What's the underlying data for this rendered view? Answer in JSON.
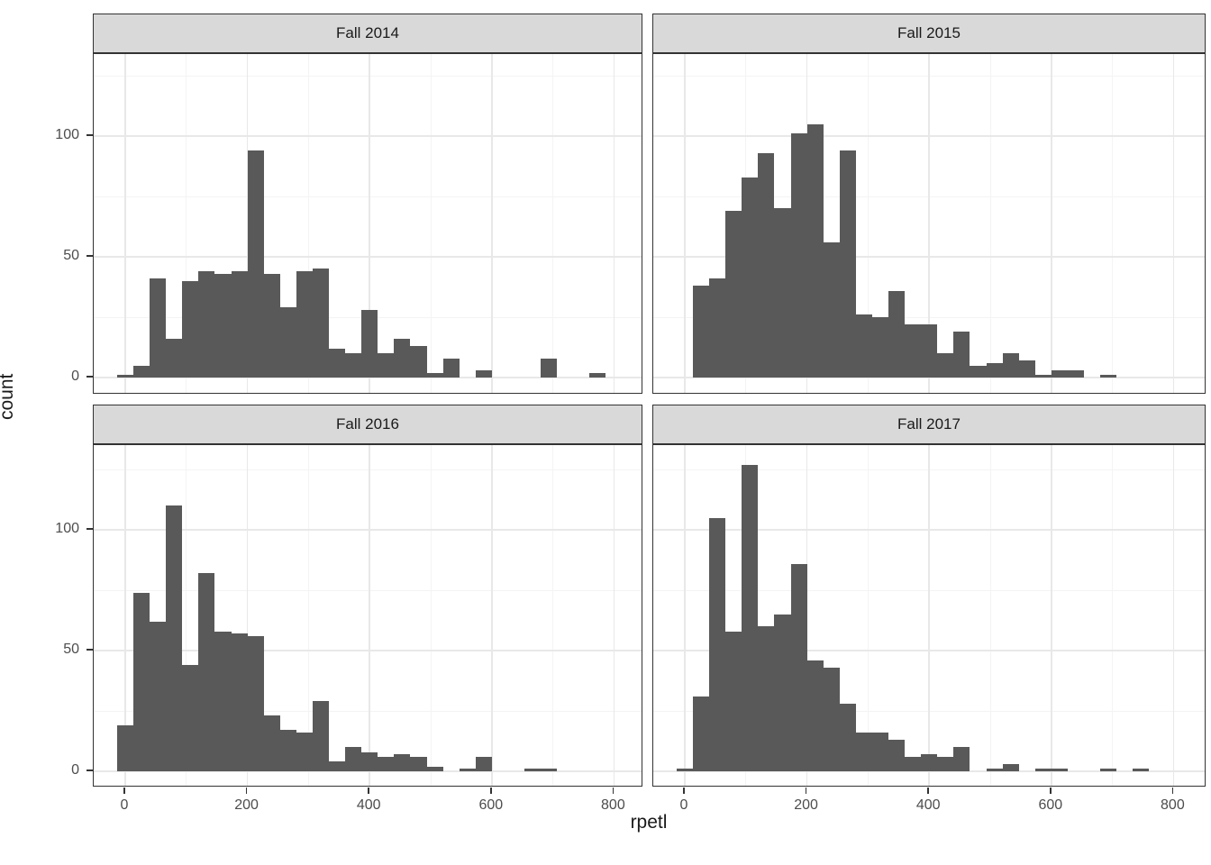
{
  "titles": {
    "x": "rpetl",
    "y": "count"
  },
  "axes": {
    "x_tick_labels": [
      "0",
      "200",
      "400",
      "600",
      "800"
    ],
    "y_tick_labels": [
      "0",
      "50",
      "100"
    ]
  },
  "style": {
    "bar_color": "#595959",
    "strip_fill": "#d9d9d9",
    "border_color": "#333333",
    "grid_major_color": "#e8e8e8",
    "grid_minor_color": "#f4f4f4",
    "axis_text_color": "#4d4d4d"
  },
  "chart_data": {
    "type": "bar",
    "subtype": "faceted-histogram",
    "title": "",
    "xlabel": "rpetl",
    "ylabel": "count",
    "x_ticks": [
      0,
      200,
      400,
      600,
      800
    ],
    "y_ticks": [
      0,
      50,
      100
    ],
    "x_minor_ticks": [
      100,
      300,
      500,
      700
    ],
    "y_minor_ticks": [
      25,
      75,
      125
    ],
    "xlim": [
      -51,
      848
    ],
    "ylim": [
      0,
      134
    ],
    "grid": true,
    "legend_position": "none",
    "bin_width": 26.67,
    "bin_centers": "multiples of 26.67 starting at 0",
    "facets": [
      {
        "label": "Fall 2014",
        "counts": [
          1,
          5,
          41,
          16,
          40,
          44,
          43,
          44,
          94,
          43,
          29,
          44,
          45,
          12,
          10,
          28,
          10,
          16,
          13,
          2,
          8,
          0,
          3,
          0,
          0,
          0,
          8,
          0,
          0,
          2
        ]
      },
      {
        "label": "Fall 2015",
        "counts": [
          0,
          38,
          41,
          69,
          83,
          93,
          70,
          101,
          105,
          56,
          94,
          26,
          25,
          36,
          22,
          22,
          10,
          19,
          5,
          6,
          10,
          7,
          1,
          3,
          3,
          0,
          1
        ]
      },
      {
        "label": "Fall 2016",
        "counts": [
          19,
          74,
          62,
          110,
          44,
          82,
          58,
          57,
          56,
          23,
          17,
          16,
          29,
          4,
          10,
          8,
          6,
          7,
          6,
          2,
          0,
          1,
          6,
          0,
          0,
          1,
          1
        ]
      },
      {
        "label": "Fall 2017",
        "counts": [
          1,
          31,
          105,
          58,
          127,
          60,
          65,
          86,
          46,
          43,
          28,
          16,
          16,
          13,
          6,
          7,
          6,
          10,
          0,
          1,
          3,
          0,
          1,
          1,
          0,
          0,
          1,
          0,
          1
        ]
      }
    ]
  }
}
